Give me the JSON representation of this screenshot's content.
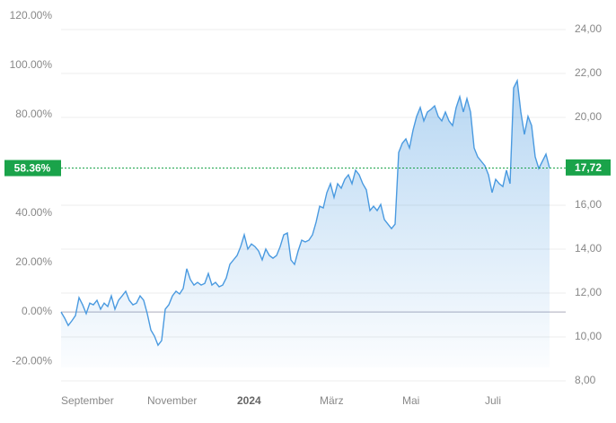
{
  "chart_data": {
    "type": "line",
    "categories": [
      "September",
      null,
      null,
      null,
      null,
      null,
      null,
      null,
      null,
      null,
      null,
      null,
      null,
      null,
      null,
      null,
      null,
      null,
      null,
      null,
      null,
      null,
      null,
      null,
      "November",
      null,
      null,
      null,
      null,
      null,
      null,
      null,
      null,
      null,
      null,
      null,
      null,
      null,
      null,
      null,
      null,
      null,
      null,
      null,
      null,
      null,
      null,
      null,
      null,
      "2024",
      null,
      null,
      null,
      null,
      null,
      null,
      null,
      null,
      null,
      null,
      null,
      null,
      null,
      null,
      null,
      null,
      null,
      null,
      null,
      null,
      null,
      null,
      "März",
      null,
      null,
      null,
      null,
      null,
      null,
      null,
      null,
      null,
      null,
      null,
      null,
      null,
      null,
      null,
      null,
      null,
      null,
      null,
      null,
      null,
      null,
      "Mai",
      null,
      null,
      null,
      null,
      null,
      null,
      null,
      null,
      null,
      null,
      null,
      null,
      null,
      null,
      null,
      null,
      null,
      null,
      null,
      null,
      null,
      null,
      "Juli",
      null,
      null,
      null,
      null,
      null,
      null,
      null,
      null,
      null,
      null,
      null,
      null,
      null,
      null,
      null,
      null,
      null,
      null
    ],
    "series": [
      {
        "color": "#4a9ae0",
        "values": [
          0,
          -2.5,
          -5.5,
          -3.6,
          -1.5,
          5.8,
          2.9,
          -0.7,
          3.6,
          2.9,
          4.7,
          1.1,
          3.6,
          2.2,
          6.5,
          1.1,
          4.7,
          6.5,
          8.4,
          4.7,
          2.9,
          3.6,
          6.5,
          4.7,
          -0.7,
          -7.3,
          -9.8,
          -13.5,
          -11.6,
          1.1,
          2.9,
          6.5,
          8.4,
          7.3,
          9.5,
          17.5,
          13.1,
          10.9,
          12,
          10.9,
          11.6,
          15.6,
          10.9,
          12,
          10.2,
          10.9,
          13.8,
          19.3,
          21.1,
          22.9,
          26.5,
          31.3,
          25.5,
          27.6,
          26.5,
          24.7,
          21.1,
          25.5,
          22.9,
          21.8,
          22.9,
          26.5,
          31.3,
          32,
          21.1,
          19.3,
          24.7,
          29.1,
          28.4,
          29.1,
          31.3,
          36.4,
          42.9,
          42.2,
          48.4,
          52,
          46.5,
          52,
          50.2,
          53.8,
          55.6,
          52,
          57.5,
          55.6,
          52,
          49.5,
          41.1,
          42.9,
          41.1,
          43.6,
          37.5,
          35.6,
          33.8,
          35.6,
          64.7,
          68.4,
          70.2,
          66.5,
          73.8,
          79.3,
          82.9,
          77.5,
          81.1,
          82.2,
          83.6,
          79.3,
          77.5,
          81.1,
          77.5,
          75.6,
          82.9,
          87.3,
          81.1,
          86.5,
          81.1,
          66.5,
          62.9,
          61.1,
          59.3,
          55.6,
          48.4,
          53.8,
          52,
          50.9,
          57.5,
          52,
          90.9,
          93.8,
          81.1,
          72,
          79.3,
          75.6,
          62.9,
          58.2,
          61.1,
          64,
          58.36
        ]
      }
    ],
    "ylim": [
      -31.6,
      122.9
    ],
    "yticks": [
      {
        "value": -20,
        "label": "-20.00%"
      },
      {
        "value": 0,
        "label": "0.00%"
      },
      {
        "value": 20,
        "label": "20.00%"
      },
      {
        "value": 40,
        "label": "40.00%"
      },
      {
        "value": 80,
        "label": "80.00%"
      },
      {
        "value": 100,
        "label": "100.00%"
      },
      {
        "value": 120,
        "label": "120.00%"
      }
    ],
    "y2lim": [
      7.59,
      24.94
    ],
    "y2ticks": [
      {
        "value": 8,
        "label": "8,00"
      },
      {
        "value": 10,
        "label": "10,00"
      },
      {
        "value": 12,
        "label": "12,00"
      },
      {
        "value": 14,
        "label": "14,00"
      },
      {
        "value": 16,
        "label": "16,00"
      },
      {
        "value": 20,
        "label": "20,00"
      },
      {
        "value": 22,
        "label": "22,00"
      },
      {
        "value": 24,
        "label": "24,00"
      }
    ],
    "grid": true,
    "current": {
      "value": 58.36,
      "label": "58.36%",
      "color": "#1aa34a"
    },
    "current_price": {
      "value": 17.72,
      "label": "17,72"
    }
  }
}
